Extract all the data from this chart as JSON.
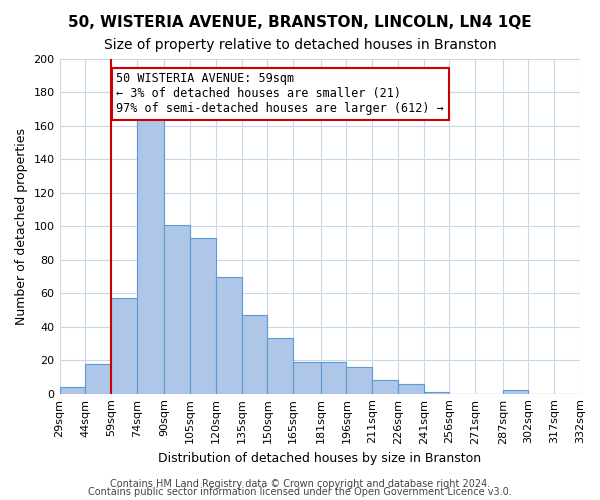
{
  "title": "50, WISTERIA AVENUE, BRANSTON, LINCOLN, LN4 1QE",
  "subtitle": "Size of property relative to detached houses in Branston",
  "xlabel": "Distribution of detached houses by size in Branston",
  "ylabel": "Number of detached properties",
  "bin_edges": [
    29,
    44,
    59,
    74,
    90,
    105,
    120,
    135,
    150,
    165,
    181,
    196,
    211,
    226,
    241,
    256,
    271,
    287,
    302,
    317,
    332
  ],
  "counts": [
    4,
    18,
    57,
    165,
    101,
    93,
    70,
    47,
    33,
    19,
    19,
    16,
    8,
    6,
    1,
    0,
    0,
    2,
    0,
    0
  ],
  "tick_labels": [
    "29sqm",
    "44sqm",
    "59sqm",
    "74sqm",
    "90sqm",
    "105sqm",
    "120sqm",
    "135sqm",
    "150sqm",
    "165sqm",
    "181sqm",
    "196sqm",
    "211sqm",
    "226sqm",
    "241sqm",
    "256sqm",
    "271sqm",
    "287sqm",
    "302sqm",
    "317sqm",
    "332sqm"
  ],
  "bar_color": "#aec6e8",
  "bar_edge_color": "#5b9bd5",
  "vline_x": 59,
  "vline_color": "#cc0000",
  "annotation_box_text": "50 WISTERIA AVENUE: 59sqm\n← 3% of detached houses are smaller (21)\n97% of semi-detached houses are larger (612) →",
  "annotation_box_color": "#cc0000",
  "ylim": [
    0,
    200
  ],
  "yticks": [
    0,
    20,
    40,
    60,
    80,
    100,
    120,
    140,
    160,
    180,
    200
  ],
  "footer1": "Contains HM Land Registry data © Crown copyright and database right 2024.",
  "footer2": "Contains public sector information licensed under the Open Government Licence v3.0.",
  "background_color": "#ffffff",
  "grid_color": "#c8d8e8",
  "title_fontsize": 11,
  "subtitle_fontsize": 10,
  "axis_label_fontsize": 9,
  "tick_fontsize": 8,
  "annotation_fontsize": 8.5,
  "footer_fontsize": 7
}
